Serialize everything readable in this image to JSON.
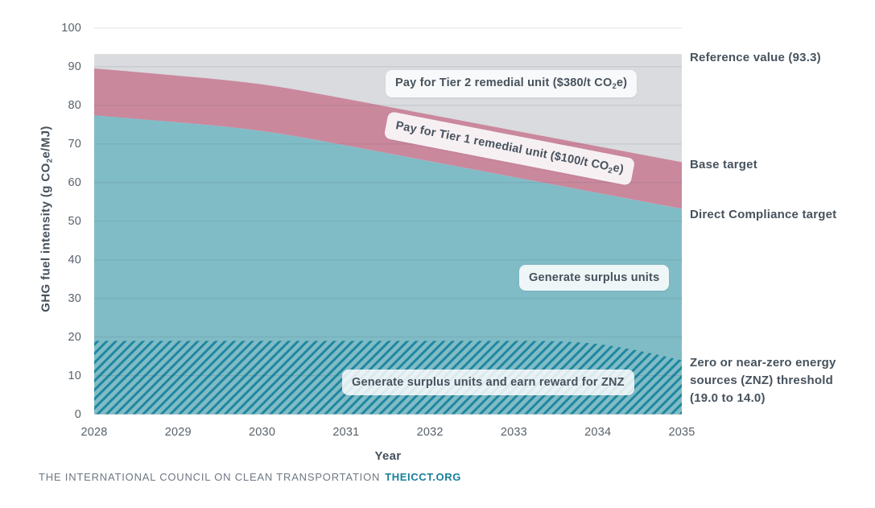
{
  "chart_data": {
    "type": "area",
    "title": "",
    "xlabel": "Year",
    "ylabel": "GHG fuel intensity (g CO₂e/MJ)",
    "x": [
      2028,
      2029,
      2030,
      2031,
      2032,
      2033,
      2034,
      2035
    ],
    "ylim": [
      0,
      100
    ],
    "yticks": [
      0,
      10,
      20,
      30,
      40,
      50,
      60,
      70,
      80,
      90,
      100
    ],
    "grid": true,
    "legend": "none",
    "reference_value": 93.3,
    "series": [
      {
        "name": "Reference value",
        "values": [
          93.3,
          93.3,
          93.3,
          93.3,
          93.3,
          93.3,
          93.3,
          93.3
        ]
      },
      {
        "name": "Base target",
        "values": [
          89.6,
          87.7,
          85.8,
          81.7,
          77.6,
          73.5,
          69.4,
          65.3
        ]
      },
      {
        "name": "Direct Compliance target",
        "values": [
          77.4,
          75.6,
          73.7,
          69.6,
          65.5,
          61.4,
          57.3,
          53.2
        ]
      },
      {
        "name": "Zero or near-zero energy sources (ZNZ) threshold",
        "values": [
          19.0,
          19.0,
          19.0,
          19.0,
          19.0,
          19.0,
          19.0,
          14.0
        ]
      }
    ],
    "regions": [
      {
        "label": "Pay for Tier 2 remedial unit ($380/t CO₂e)",
        "between": [
          "Base target",
          "Reference value"
        ],
        "color": "#d9dbde"
      },
      {
        "label": "Pay for Tier 1 remedial unit ($100/t CO₂e)",
        "between": [
          "Direct Compliance target",
          "Base target"
        ],
        "color": "#ca889d"
      },
      {
        "label": "Generate surplus units",
        "between": [
          "0",
          "Direct Compliance target"
        ],
        "color": "#80bcc6"
      },
      {
        "label": "Generate surplus units and earn reward for ZNZ",
        "between": [
          "0",
          "ZNZ threshold"
        ],
        "color": "#80bcc6 hatched #1f87a0"
      }
    ]
  },
  "axis": {
    "x_label": "Year",
    "x_ticks": [
      "2028",
      "2029",
      "2030",
      "2031",
      "2032",
      "2033",
      "2034",
      "2035"
    ],
    "y_ticks": [
      "0",
      "10",
      "20",
      "30",
      "40",
      "50",
      "60",
      "70",
      "80",
      "90",
      "100"
    ],
    "y_title": {
      "pre": "GHG fuel intensity (g CO",
      "sub": "2",
      "post": "e/MJ)"
    }
  },
  "labels": {
    "tier2": {
      "pre": "Pay for Tier 2 remedial unit ($380/t CO",
      "sub": "2",
      "post": "e)"
    },
    "tier1": {
      "pre": "Pay for Tier 1 remedial unit ($100/t CO",
      "sub": "2",
      "post": "e)"
    },
    "surplus": "Generate surplus units",
    "znz_surplus": "Generate surplus units and earn reward for ZNZ"
  },
  "annotations": {
    "reference": "Reference value (93.3)",
    "base": "Base target",
    "direct": "Direct Compliance target",
    "znz": "Zero or near-zero energy\nsources (ZNZ) threshold\n(19.0 to 14.0)"
  },
  "footer": {
    "org": "THE INTERNATIONAL COUNCIL ON CLEAN TRANSPORTATION",
    "site": "THEICCT.ORG"
  },
  "colors": {
    "teal_area": "#80bcc6",
    "pink_area": "#ca889d",
    "gray_area": "#d9dbde",
    "hatch_line": "#1f87a0",
    "gridline": "rgba(52,64,84,0.15)",
    "text_dark": "#47525d",
    "text_tick": "#58626c",
    "footer_gray": "#6e7882",
    "footer_teal": "#177f9c",
    "pill_bg": "#fbfcfd"
  }
}
